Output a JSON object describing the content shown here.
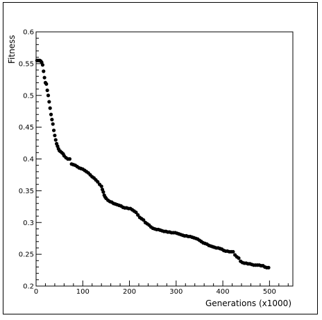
{
  "chart_data": {
    "type": "scatter",
    "title": "",
    "xlabel": "Generations (x1000)",
    "ylabel": "Fitness",
    "xlim": [
      0,
      550
    ],
    "ylim": [
      0.2,
      0.6
    ],
    "x_ticks": [
      0,
      100,
      200,
      300,
      400,
      500
    ],
    "y_ticks": [
      0.2,
      0.25,
      0.3,
      0.35,
      0.4,
      0.45,
      0.5,
      0.55,
      0.6
    ],
    "x_tick_labels": [
      "0",
      "100",
      "200",
      "300",
      "400",
      "500"
    ],
    "y_tick_labels": [
      "0.2",
      "0.25",
      "0.3",
      "0.35",
      "0.4",
      "0.45",
      "0.5",
      "0.55",
      "0.6"
    ],
    "grid": false,
    "marker_color": "#000000",
    "series": [
      {
        "points": [
          [
            2,
            0.555
          ],
          [
            4,
            0.555
          ],
          [
            6,
            0.555
          ],
          [
            8,
            0.555
          ],
          [
            10,
            0.554
          ],
          [
            12,
            0.552
          ],
          [
            14,
            0.548
          ],
          [
            16,
            0.538
          ],
          [
            18,
            0.528
          ],
          [
            20,
            0.52
          ],
          [
            22,
            0.518
          ],
          [
            24,
            0.508
          ],
          [
            26,
            0.5
          ],
          [
            28,
            0.49
          ],
          [
            30,
            0.48
          ],
          [
            32,
            0.47
          ],
          [
            34,
            0.462
          ],
          [
            36,
            0.455
          ],
          [
            38,
            0.445
          ],
          [
            40,
            0.437
          ],
          [
            42,
            0.43
          ],
          [
            44,
            0.424
          ],
          [
            46,
            0.42
          ],
          [
            48,
            0.416
          ],
          [
            50,
            0.413
          ],
          [
            52,
            0.412
          ],
          [
            55,
            0.41
          ],
          [
            58,
            0.408
          ],
          [
            60,
            0.405
          ],
          [
            64,
            0.402
          ],
          [
            68,
            0.4
          ],
          [
            72,
            0.4
          ],
          [
            76,
            0.392
          ],
          [
            80,
            0.391
          ],
          [
            84,
            0.39
          ],
          [
            88,
            0.388
          ],
          [
            92,
            0.386
          ],
          [
            96,
            0.385
          ],
          [
            100,
            0.384
          ],
          [
            104,
            0.382
          ],
          [
            108,
            0.38
          ],
          [
            112,
            0.378
          ],
          [
            116,
            0.375
          ],
          [
            120,
            0.372
          ],
          [
            124,
            0.37
          ],
          [
            128,
            0.367
          ],
          [
            132,
            0.364
          ],
          [
            136,
            0.36
          ],
          [
            140,
            0.357
          ],
          [
            142,
            0.352
          ],
          [
            144,
            0.348
          ],
          [
            146,
            0.343
          ],
          [
            148,
            0.34
          ],
          [
            150,
            0.338
          ],
          [
            154,
            0.335
          ],
          [
            158,
            0.333
          ],
          [
            162,
            0.332
          ],
          [
            166,
            0.33
          ],
          [
            170,
            0.329
          ],
          [
            174,
            0.328
          ],
          [
            178,
            0.327
          ],
          [
            182,
            0.326
          ],
          [
            186,
            0.324
          ],
          [
            190,
            0.323
          ],
          [
            194,
            0.323
          ],
          [
            198,
            0.322
          ],
          [
            202,
            0.322
          ],
          [
            206,
            0.32
          ],
          [
            210,
            0.318
          ],
          [
            214,
            0.316
          ],
          [
            218,
            0.312
          ],
          [
            222,
            0.308
          ],
          [
            226,
            0.306
          ],
          [
            230,
            0.304
          ],
          [
            234,
            0.3
          ],
          [
            238,
            0.298
          ],
          [
            242,
            0.296
          ],
          [
            246,
            0.293
          ],
          [
            250,
            0.291
          ],
          [
            254,
            0.29
          ],
          [
            258,
            0.289
          ],
          [
            262,
            0.289
          ],
          [
            266,
            0.288
          ],
          [
            270,
            0.287
          ],
          [
            274,
            0.286
          ],
          [
            278,
            0.286
          ],
          [
            282,
            0.285
          ],
          [
            286,
            0.285
          ],
          [
            290,
            0.284
          ],
          [
            294,
            0.284
          ],
          [
            298,
            0.284
          ],
          [
            302,
            0.283
          ],
          [
            306,
            0.282
          ],
          [
            310,
            0.281
          ],
          [
            314,
            0.28
          ],
          [
            318,
            0.279
          ],
          [
            322,
            0.279
          ],
          [
            326,
            0.278
          ],
          [
            330,
            0.278
          ],
          [
            334,
            0.277
          ],
          [
            338,
            0.276
          ],
          [
            342,
            0.275
          ],
          [
            346,
            0.274
          ],
          [
            350,
            0.272
          ],
          [
            354,
            0.27
          ],
          [
            358,
            0.268
          ],
          [
            362,
            0.267
          ],
          [
            366,
            0.266
          ],
          [
            370,
            0.264
          ],
          [
            374,
            0.263
          ],
          [
            378,
            0.262
          ],
          [
            382,
            0.261
          ],
          [
            386,
            0.26
          ],
          [
            390,
            0.26
          ],
          [
            394,
            0.259
          ],
          [
            398,
            0.258
          ],
          [
            402,
            0.256
          ],
          [
            406,
            0.255
          ],
          [
            410,
            0.255
          ],
          [
            414,
            0.254
          ],
          [
            418,
            0.254
          ],
          [
            422,
            0.254
          ],
          [
            426,
            0.249
          ],
          [
            430,
            0.246
          ],
          [
            434,
            0.244
          ],
          [
            438,
            0.239
          ],
          [
            442,
            0.237
          ],
          [
            446,
            0.236
          ],
          [
            450,
            0.236
          ],
          [
            454,
            0.235
          ],
          [
            458,
            0.235
          ],
          [
            462,
            0.234
          ],
          [
            466,
            0.233
          ],
          [
            470,
            0.233
          ],
          [
            474,
            0.233
          ],
          [
            478,
            0.233
          ],
          [
            482,
            0.232
          ],
          [
            486,
            0.232
          ],
          [
            490,
            0.23
          ],
          [
            494,
            0.229
          ],
          [
            498,
            0.229
          ]
        ]
      }
    ]
  }
}
